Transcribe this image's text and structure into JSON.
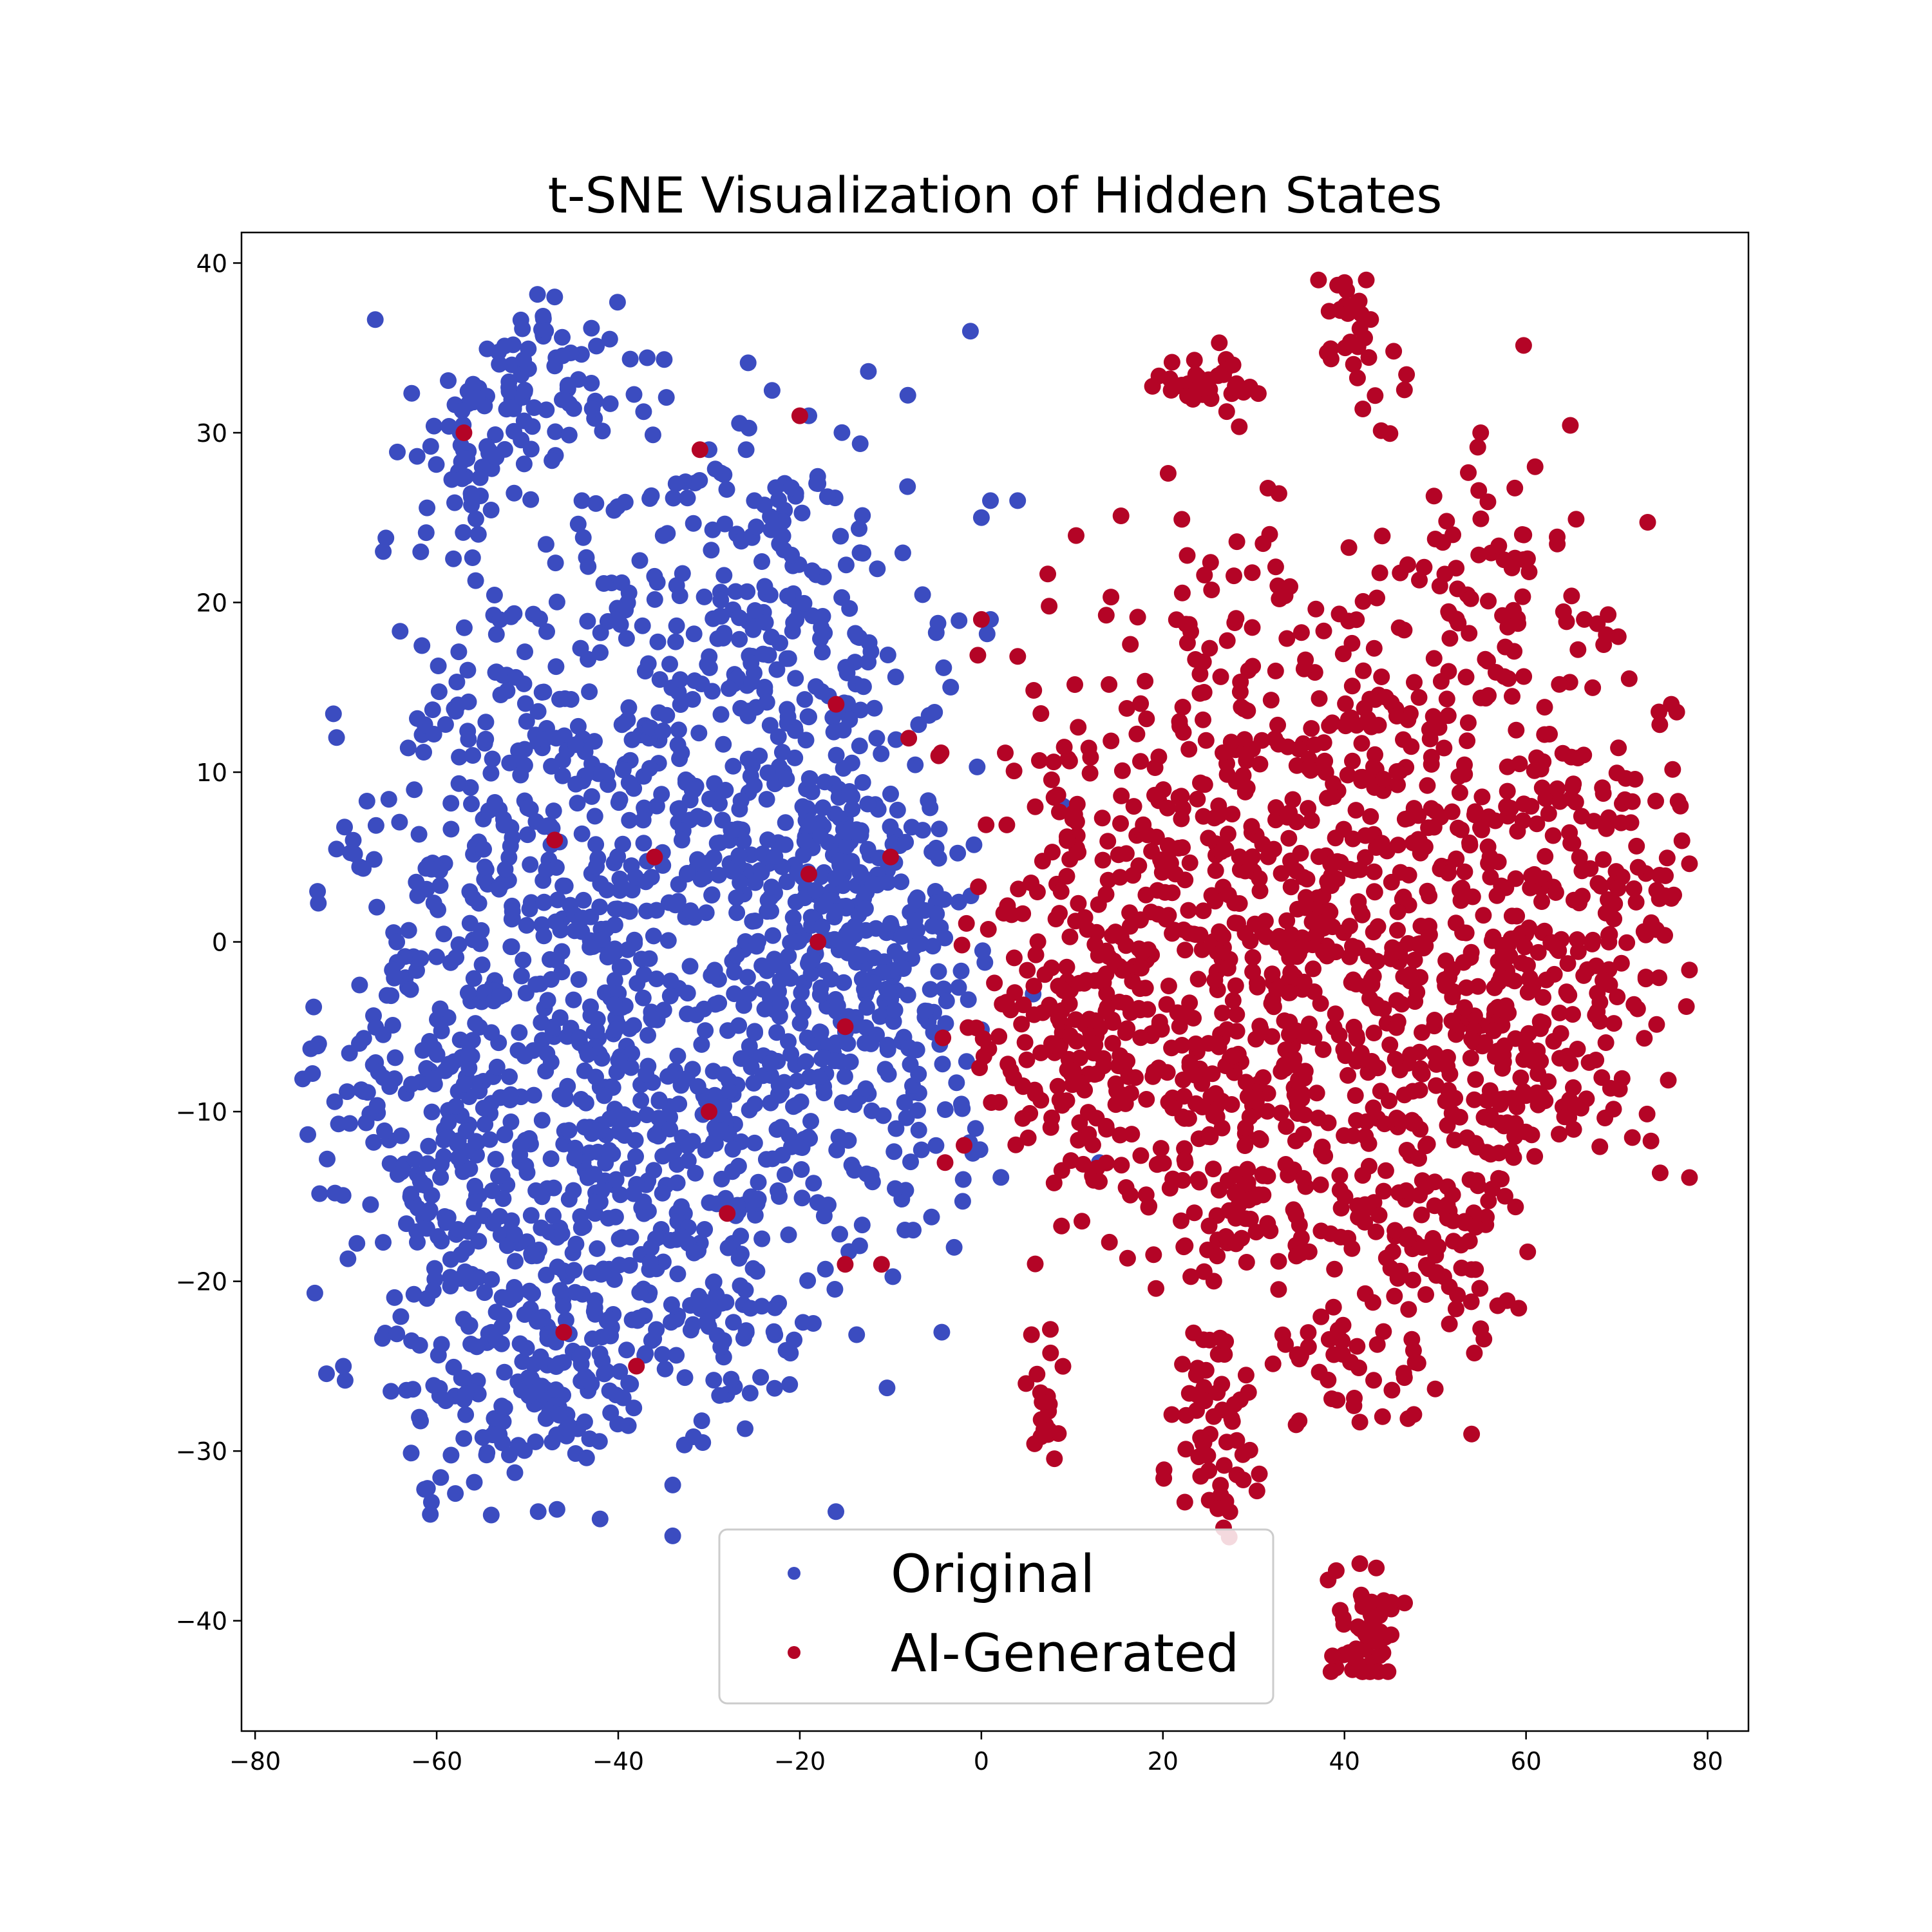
{
  "chart_data": {
    "type": "scatter",
    "title": "t-SNE Visualization of Hidden States",
    "xlabel": "",
    "ylabel": "",
    "xlim": [
      -81.5,
      84.5
    ],
    "ylim": [
      -46.5,
      41.8
    ],
    "xticks": [
      -80,
      -60,
      -40,
      -20,
      0,
      20,
      40,
      60,
      80
    ],
    "yticks": [
      40,
      30,
      20,
      10,
      0,
      -10,
      -20,
      -30,
      -40
    ],
    "grid": false,
    "legend": {
      "position": "lower-center",
      "entries": [
        "Original",
        "AI-Generated"
      ]
    },
    "colors": {
      "Original": "#3b4cc0",
      "AI-Generated": "#b40426"
    },
    "series": [
      {
        "name": "Original",
        "clusters": [
          {
            "cx": -48,
            "cy": 33,
            "sx": 5,
            "sy": 2.5,
            "n": 70
          },
          {
            "cx": -56,
            "cy": 29,
            "sx": 3,
            "sy": 2,
            "n": 40
          },
          {
            "cx": -55,
            "cy": 12,
            "sx": 6,
            "sy": 8,
            "n": 90
          },
          {
            "cx": -40,
            "cy": 10,
            "sx": 10,
            "sy": 10,
            "n": 240
          },
          {
            "cx": -22,
            "cy": 12,
            "sx": 9,
            "sy": 9,
            "n": 220
          },
          {
            "cx": -15,
            "cy": 3,
            "sx": 6,
            "sy": 8,
            "n": 150
          },
          {
            "cx": -60,
            "cy": -8,
            "sx": 7,
            "sy": 8,
            "n": 190
          },
          {
            "cx": -40,
            "cy": -6,
            "sx": 10,
            "sy": 8,
            "n": 270
          },
          {
            "cx": -20,
            "cy": -6,
            "sx": 8,
            "sy": 7,
            "n": 200
          },
          {
            "cx": -55,
            "cy": -20,
            "sx": 7,
            "sy": 6,
            "n": 150
          },
          {
            "cx": -35,
            "cy": -20,
            "sx": 9,
            "sy": 5,
            "n": 190
          },
          {
            "cx": -48,
            "cy": -27,
            "sx": 5,
            "sy": 3,
            "n": 60
          },
          {
            "cx": -7,
            "cy": -3,
            "sx": 5,
            "sy": 6,
            "n": 70
          },
          {
            "cx": -20,
            "cy": 22,
            "sx": 5,
            "sy": 4,
            "n": 40
          }
        ],
        "points": [
          [
            -73,
            -6
          ],
          [
            -42,
            -34
          ],
          [
            -34,
            -35
          ],
          [
            -34,
            -32
          ],
          [
            -30,
            29
          ],
          [
            -19,
            31
          ],
          [
            -18,
            27
          ],
          [
            -25,
            26
          ],
          [
            -44,
            26
          ],
          [
            1,
            26
          ],
          [
            4,
            26
          ],
          [
            0,
            25
          ],
          [
            1,
            19
          ],
          [
            -3,
            -18
          ],
          [
            9,
            8
          ],
          [
            13,
            -13
          ],
          [
            -47,
            38
          ],
          [
            -48,
            36
          ],
          [
            -2,
            -14
          ],
          [
            -5,
            -12
          ]
        ]
      },
      {
        "name": "AI-Generated",
        "clusters": [
          {
            "cx": 25,
            "cy": 33,
            "sx": 3,
            "sy": 1,
            "n": 35
          },
          {
            "cx": 41,
            "cy": 36,
            "sx": 2,
            "sy": 2,
            "n": 30
          },
          {
            "cx": 42,
            "cy": -40,
            "sx": 2,
            "sy": 2,
            "n": 55
          },
          {
            "cx": 25,
            "cy": -30,
            "sx": 3,
            "sy": 3,
            "n": 50
          },
          {
            "cx": 7,
            "cy": -28,
            "sx": 1,
            "sy": 2,
            "n": 20
          },
          {
            "cx": 55,
            "cy": 20,
            "sx": 7,
            "sy": 5,
            "n": 80
          },
          {
            "cx": 40,
            "cy": 13,
            "sx": 8,
            "sy": 5,
            "n": 100
          },
          {
            "cx": 15,
            "cy": 5,
            "sx": 8,
            "sy": 7,
            "n": 160
          },
          {
            "cx": 35,
            "cy": 3,
            "sx": 10,
            "sy": 6,
            "n": 220
          },
          {
            "cx": 58,
            "cy": 3,
            "sx": 9,
            "sy": 7,
            "n": 200
          },
          {
            "cx": 10,
            "cy": -6,
            "sx": 7,
            "sy": 4,
            "n": 130
          },
          {
            "cx": 30,
            "cy": -8,
            "sx": 10,
            "sy": 5,
            "n": 200
          },
          {
            "cx": 55,
            "cy": -6,
            "sx": 9,
            "sy": 5,
            "n": 170
          },
          {
            "cx": 25,
            "cy": -15,
            "sx": 8,
            "sy": 3,
            "n": 80
          },
          {
            "cx": 48,
            "cy": -17,
            "sx": 7,
            "sy": 4,
            "n": 100
          },
          {
            "cx": 40,
            "cy": -25,
            "sx": 6,
            "sy": 3,
            "n": 50
          },
          {
            "cx": 70,
            "cy": 5,
            "sx": 4,
            "sy": 6,
            "n": 60
          },
          {
            "cx": 25,
            "cy": 21,
            "sx": 5,
            "sy": 3,
            "n": 25
          }
        ],
        "points": [
          [
            61,
            28
          ],
          [
            55,
            30
          ],
          [
            54,
            -29
          ],
          [
            77,
            8
          ],
          [
            76,
            14
          ],
          [
            -46,
            -23
          ],
          [
            -47,
            6
          ],
          [
            -10,
            5
          ],
          [
            -30,
            -10
          ],
          [
            -19,
            4
          ],
          [
            -36,
            5
          ],
          [
            -38,
            -25
          ],
          [
            -57,
            30
          ],
          [
            -31,
            29
          ],
          [
            -20,
            31
          ],
          [
            -18,
            0
          ],
          [
            -15,
            -19
          ],
          [
            -16,
            14
          ],
          [
            -8,
            12
          ],
          [
            0,
            19
          ],
          [
            -11,
            -19
          ],
          [
            -4,
            -13
          ],
          [
            -15,
            -5
          ],
          [
            -28,
            -16
          ]
        ]
      }
    ]
  }
}
